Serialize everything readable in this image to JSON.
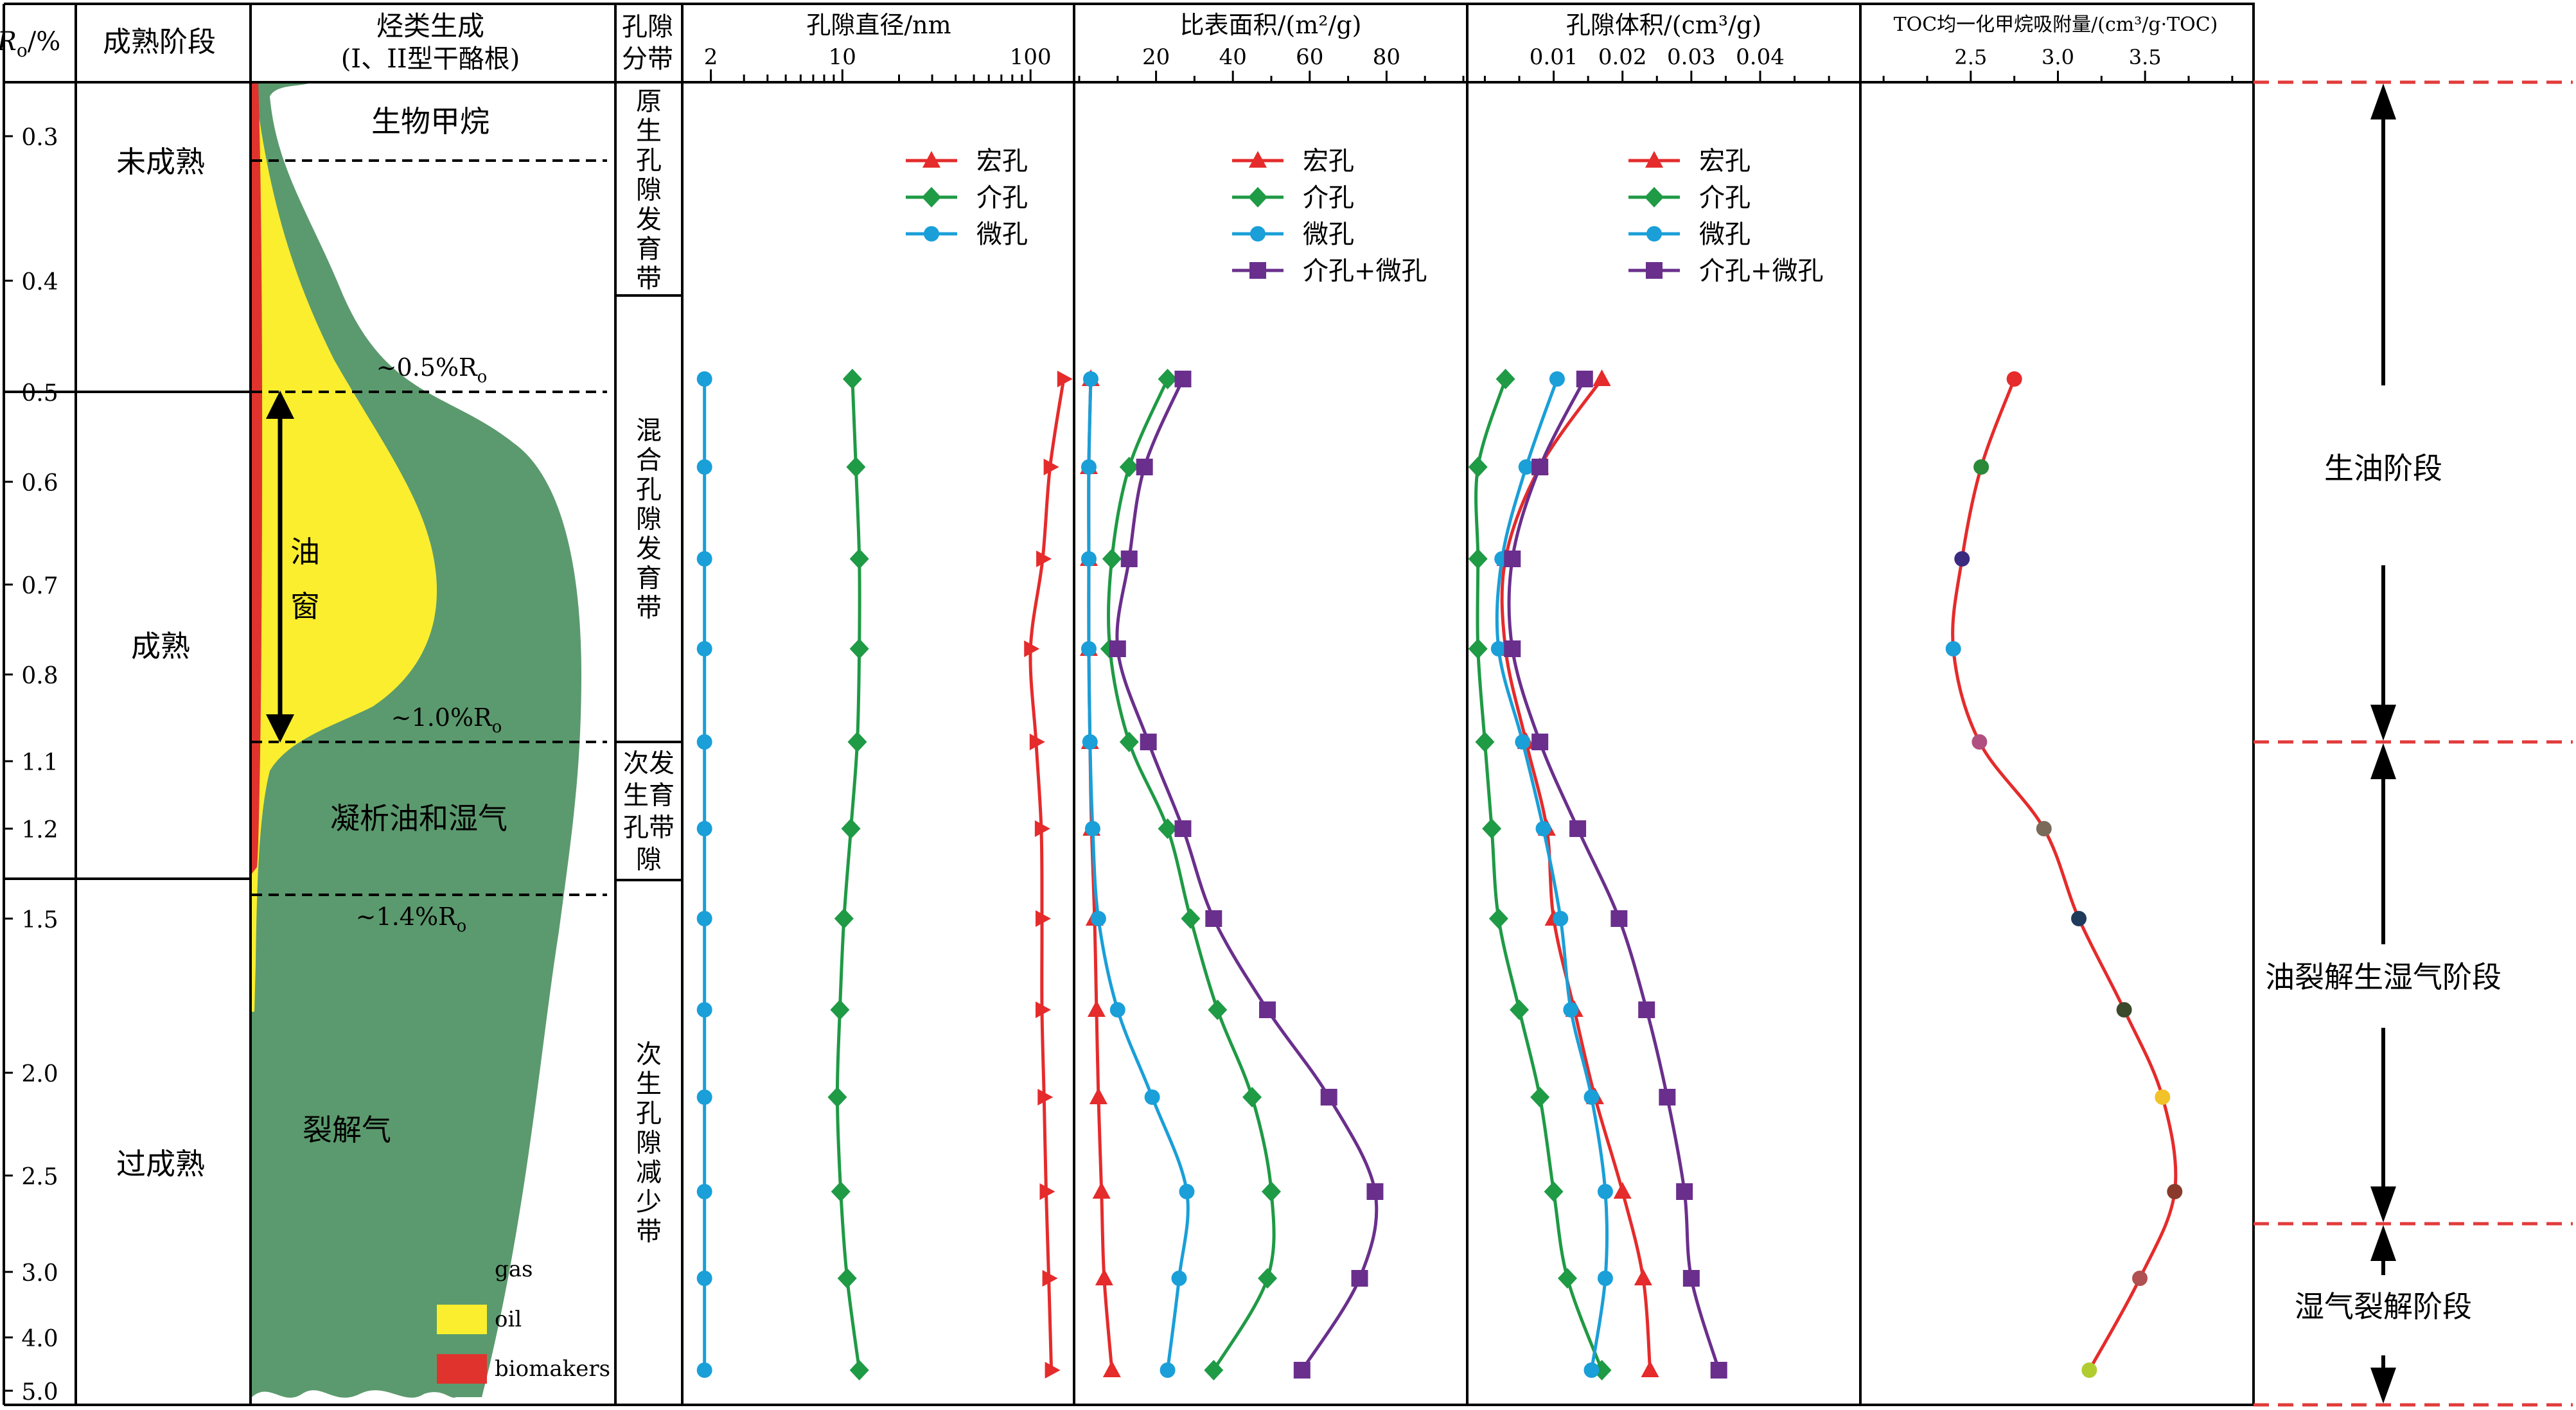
{
  "headers": {
    "ro": "R",
    "ro_sub": "o",
    "ro_unit": "/%",
    "maturity": "成熟阶段",
    "hc_line1": "烃类生成",
    "hc_line2": "(I、II型干酪根)",
    "pore_line1": "孔隙",
    "pore_line2": "分带",
    "diam": "孔隙直径/nm",
    "ssa": "比表面积/(m²/g)",
    "vol": "孔隙体积/(cm³/g)",
    "toc": "TOC均一化甲烷吸附量/(cm³/g·TOC)"
  },
  "ro_ticks": [
    "0.3",
    "0.4",
    "0.5",
    "0.6",
    "0.7",
    "0.8",
    "1.1",
    "1.2",
    "1.5",
    "2.0",
    "2.5",
    "3.0",
    "4.0",
    "5.0"
  ],
  "stages": [
    "未成熟",
    "成熟",
    "过成熟"
  ],
  "hc_labels": {
    "biogas": "生物甲烷",
    "oil_window_chars": [
      "油",
      "窗"
    ],
    "condensate": "凝析油和湿气",
    "cracking_gas": "裂解气",
    "ro05_prefix": "~0.5%R",
    "ro05_sub": "o",
    "ro10_prefix": "~1.0%R",
    "ro10_sub": "o",
    "ro14_prefix": "~1.4%R",
    "ro14_sub": "o"
  },
  "hc_legend": [
    {
      "name": "gas",
      "color": "#5b9a6e"
    },
    {
      "name": "oil",
      "color": "#fbee2f"
    },
    {
      "name": "biomakers",
      "color": "#e0332e"
    }
  ],
  "pore_zones": [
    {
      "chars": [
        "原",
        "生",
        "孔",
        "隙",
        "发",
        "育",
        "带"
      ]
    },
    {
      "chars": [
        "混",
        "合",
        "孔",
        "隙",
        "发",
        "育",
        "带"
      ]
    },
    {
      "chars": [
        "次发",
        "生育",
        "孔带",
        "隙"
      ]
    },
    {
      "chars": [
        "次",
        "生",
        "孔",
        "隙",
        "减",
        "少",
        "带"
      ]
    }
  ],
  "colors": {
    "macro": "#e52b2b",
    "meso": "#1f9a45",
    "micro": "#1a9fd8",
    "mesomicro": "#6a2f8c",
    "stage_line": "#e23b3b"
  },
  "legend_pore": {
    "macro": "宏孔",
    "meso": "介孔",
    "micro": "微孔",
    "mesomicro": "介孔+微孔"
  },
  "right_stages": [
    "生油阶段",
    "油裂解生湿气阶段",
    "湿气裂解阶段"
  ],
  "chart_data": [
    {
      "type": "line",
      "title": "孔隙直径/nm",
      "x_scale": "log",
      "xlim": [
        1.5,
        160
      ],
      "x_tick_labels": [
        "2",
        "10",
        "100"
      ],
      "y": [
        "0.5",
        "0.6",
        "0.7",
        "0.8",
        "1.1",
        "1.2",
        "1.5",
        "1.8",
        "2.1",
        "2.6",
        "3.0",
        "4.5"
      ],
      "series": [
        {
          "name": "宏孔",
          "key": "macro",
          "marker": "triangle",
          "values": [
            150,
            127,
            116,
            100,
            107,
            114,
            115,
            115,
            118,
            121,
            125,
            129
          ]
        },
        {
          "name": "介孔",
          "key": "meso",
          "marker": "diamond",
          "values": [
            11.3,
            11.8,
            12.3,
            12.3,
            12.0,
            11.1,
            10.2,
            9.7,
            9.4,
            9.8,
            10.6,
            12.3
          ]
        },
        {
          "name": "微孔",
          "key": "micro",
          "marker": "circle",
          "values": [
            1.85,
            1.85,
            1.85,
            1.85,
            1.85,
            1.85,
            1.85,
            1.85,
            1.85,
            1.85,
            1.85,
            1.85
          ]
        }
      ]
    },
    {
      "type": "line",
      "title": "比表面积/(m²/g)",
      "xlim": [
        0,
        100
      ],
      "x_tick_labels": [
        "20",
        "40",
        "60",
        "80"
      ],
      "y": [
        "0.5",
        "0.6",
        "0.7",
        "0.8",
        "1.1",
        "1.2",
        "1.5",
        "1.8",
        "2.1",
        "2.6",
        "3.0",
        "4.5"
      ],
      "series": [
        {
          "name": "宏孔",
          "key": "macro",
          "values": [
            3,
            2.5,
            2.5,
            2.5,
            2.8,
            3.2,
            4,
            4.5,
            5,
            5.8,
            6.5,
            8.5
          ]
        },
        {
          "name": "介孔",
          "key": "meso",
          "values": [
            23,
            13,
            8.5,
            8,
            13,
            23,
            29,
            36,
            45,
            50,
            49,
            35
          ]
        },
        {
          "name": "微孔",
          "key": "micro",
          "values": [
            3,
            2.5,
            2.5,
            2.5,
            2.8,
            3.5,
            5,
            10,
            19,
            28,
            26,
            23
          ]
        },
        {
          "name": "介孔+微孔",
          "key": "mesomicro",
          "values": [
            27,
            17,
            13,
            10,
            18,
            27,
            35,
            49,
            65,
            77,
            73,
            58
          ]
        }
      ]
    },
    {
      "type": "line",
      "title": "孔隙体积/(cm³/g)",
      "xlim": [
        -0.002,
        0.054
      ],
      "x_tick_labels": [
        "0.01",
        "0.02",
        "0.03",
        "0.04"
      ],
      "y": [
        "0.5",
        "0.6",
        "0.7",
        "0.8",
        "1.1",
        "1.2",
        "1.5",
        "1.8",
        "2.1",
        "2.6",
        "3.0",
        "4.5"
      ],
      "series": [
        {
          "name": "宏孔",
          "key": "macro",
          "values": [
            0.017,
            0.008,
            0.003,
            0.003,
            0.006,
            0.009,
            0.01,
            0.013,
            0.016,
            0.02,
            0.023,
            0.024
          ]
        },
        {
          "name": "介孔",
          "key": "meso",
          "values": [
            0.003,
            -0.001,
            -0.001,
            -0.001,
            0.0,
            0.001,
            0.002,
            0.005,
            0.008,
            0.01,
            0.012,
            0.017
          ]
        },
        {
          "name": "微孔",
          "key": "micro",
          "values": [
            0.0105,
            0.006,
            0.0025,
            0.002,
            0.0055,
            0.0085,
            0.011,
            0.0125,
            0.0155,
            0.0175,
            0.0175,
            0.0155
          ]
        },
        {
          "name": "介孔+微孔",
          "key": "mesomicro",
          "values": [
            0.0145,
            0.008,
            0.004,
            0.004,
            0.008,
            0.0135,
            0.0195,
            0.0235,
            0.0265,
            0.029,
            0.03,
            0.034
          ]
        }
      ]
    },
    {
      "type": "line",
      "title": "TOC均一化甲烷吸附量/(cm³/g·TOC)",
      "xlim": [
        1.9,
        4.1
      ],
      "x_tick_labels": [
        "2.5",
        "3.0",
        "3.5"
      ],
      "y": [
        "0.5",
        "0.6",
        "0.7",
        "0.8",
        "1.1",
        "1.2",
        "1.5",
        "1.8",
        "2.1",
        "2.6",
        "3.0",
        "4.5"
      ],
      "series": [
        {
          "name": "",
          "key": "toc",
          "values": [
            2.75,
            2.56,
            2.45,
            2.4,
            2.55,
            2.92,
            3.12,
            3.38,
            3.6,
            3.67,
            3.47,
            3.18
          ],
          "point_colors": [
            "#e52b2b",
            "#2a8a3a",
            "#3c2a80",
            "#1a9fd8",
            "#b05080",
            "#7a6a5a",
            "#1f3a5a",
            "#3a4a2a",
            "#f2c22a",
            "#8a3a2a",
            "#b05050",
            "#b0cc30"
          ]
        }
      ]
    }
  ]
}
